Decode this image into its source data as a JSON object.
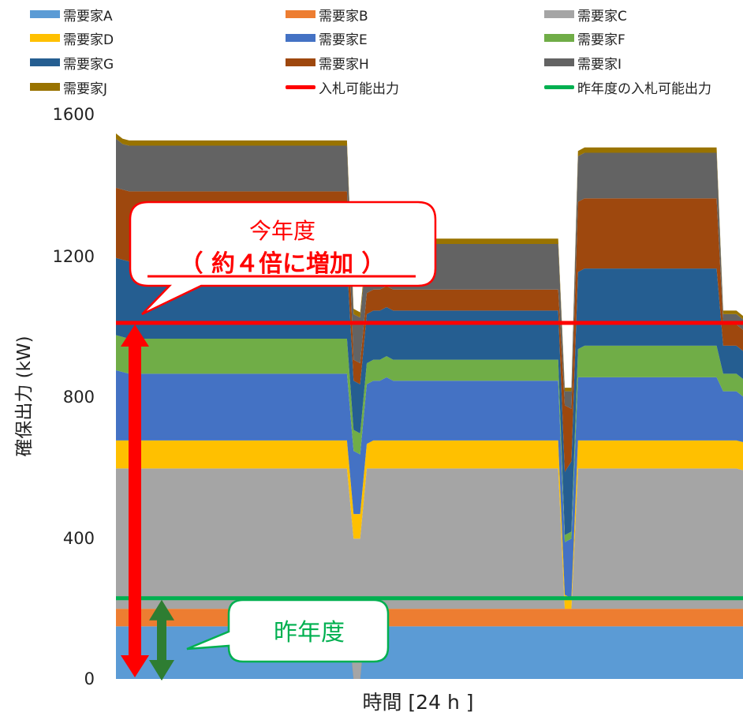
{
  "chart_data": {
    "type": "area",
    "stacked": true,
    "xlabel": "時間 [24 h ]",
    "ylabel": "確保出力 (kW)",
    "ylim": [
      0,
      1600
    ],
    "yticks": [
      0,
      400,
      800,
      1200,
      1600
    ],
    "x": [
      0,
      1,
      2,
      3,
      4,
      5,
      6,
      7,
      8,
      9,
      10,
      11,
      12,
      13,
      14,
      15,
      16,
      17,
      18,
      19,
      20,
      21,
      22,
      23,
      24,
      25,
      26,
      27,
      28,
      29,
      30,
      31,
      32,
      33,
      34,
      35,
      36,
      37,
      38,
      39,
      40,
      41,
      42,
      43,
      44,
      45,
      46,
      47,
      48,
      49,
      50,
      51,
      52,
      53,
      54,
      55,
      56,
      57,
      58,
      59,
      60,
      61,
      62,
      63,
      64,
      65,
      66,
      67,
      68,
      69,
      70,
      71,
      72,
      73,
      74,
      75,
      76,
      77,
      78,
      79,
      80,
      81,
      82,
      83,
      84,
      85,
      86,
      87,
      88,
      89,
      90,
      91,
      92,
      93,
      94,
      95
    ],
    "series": [
      {
        "name": "需要家A",
        "color": "#5b9bd5",
        "values": [
          150,
          150,
          150,
          150,
          150,
          150,
          150,
          150,
          150,
          150,
          150,
          150,
          150,
          150,
          150,
          150,
          150,
          150,
          150,
          150,
          150,
          150,
          150,
          150,
          150,
          150,
          150,
          150,
          150,
          150,
          150,
          150,
          150,
          150,
          150,
          150,
          150,
          150,
          150,
          150,
          150,
          150,
          150,
          150,
          150,
          150,
          150,
          150,
          150,
          150,
          150,
          150,
          150,
          150,
          150,
          150,
          150,
          150,
          150,
          150,
          150,
          150,
          150,
          150,
          150,
          150,
          150,
          150,
          150,
          150,
          150,
          150,
          150,
          150,
          150,
          150,
          150,
          150,
          150,
          150,
          150,
          150,
          150,
          150,
          150,
          150,
          150,
          150,
          150,
          150,
          150,
          150,
          150,
          150,
          150,
          150
        ]
      },
      {
        "name": "需要家B",
        "color": "#ed7d31",
        "values": [
          50,
          50,
          50,
          50,
          50,
          50,
          50,
          50,
          50,
          50,
          50,
          50,
          50,
          50,
          50,
          50,
          50,
          50,
          50,
          50,
          50,
          50,
          50,
          50,
          50,
          50,
          50,
          50,
          50,
          50,
          50,
          50,
          50,
          50,
          50,
          50,
          -150,
          -150,
          50,
          50,
          50,
          50,
          50,
          50,
          50,
          50,
          50,
          50,
          50,
          50,
          50,
          50,
          50,
          50,
          50,
          50,
          50,
          50,
          50,
          50,
          50,
          50,
          50,
          50,
          50,
          50,
          50,
          50,
          50,
          50,
          50,
          50,
          50,
          50,
          50,
          50,
          50,
          50,
          50,
          50,
          50,
          50,
          50,
          50,
          50,
          50,
          50,
          50,
          50,
          50,
          50,
          50,
          50,
          50,
          50,
          50
        ]
      },
      {
        "name": "需要家C",
        "color": "#a5a5a5",
        "values": [
          400,
          400,
          400,
          400,
          400,
          400,
          400,
          400,
          400,
          400,
          400,
          400,
          400,
          400,
          400,
          400,
          400,
          400,
          400,
          400,
          400,
          400,
          400,
          400,
          400,
          400,
          400,
          400,
          400,
          400,
          400,
          400,
          400,
          400,
          400,
          400,
          400,
          400,
          400,
          400,
          400,
          400,
          400,
          400,
          400,
          400,
          400,
          400,
          400,
          400,
          400,
          400,
          400,
          400,
          400,
          400,
          400,
          400,
          400,
          400,
          400,
          400,
          400,
          400,
          400,
          400,
          400,
          400,
          0,
          0,
          400,
          400,
          400,
          400,
          400,
          400,
          400,
          400,
          400,
          400,
          400,
          400,
          400,
          400,
          400,
          400,
          400,
          400,
          400,
          400,
          400,
          400,
          400,
          400,
          400,
          395
        ]
      },
      {
        "name": "需要家D",
        "color": "#ffc000",
        "values": [
          80,
          80,
          80,
          80,
          80,
          80,
          80,
          80,
          80,
          80,
          80,
          80,
          80,
          80,
          80,
          80,
          80,
          80,
          80,
          80,
          80,
          80,
          80,
          80,
          80,
          80,
          80,
          80,
          80,
          80,
          80,
          80,
          80,
          80,
          80,
          80,
          70,
          70,
          70,
          80,
          80,
          80,
          80,
          80,
          80,
          80,
          80,
          80,
          80,
          80,
          80,
          80,
          80,
          80,
          80,
          80,
          80,
          80,
          80,
          80,
          80,
          80,
          80,
          80,
          80,
          80,
          80,
          80,
          40,
          30,
          80,
          80,
          80,
          80,
          80,
          80,
          80,
          80,
          80,
          80,
          80,
          80,
          80,
          80,
          80,
          80,
          80,
          80,
          80,
          80,
          80,
          80,
          80,
          80,
          80,
          80
        ]
      },
      {
        "name": "需要家E",
        "color": "#4472c4",
        "values": [
          200,
          195,
          190,
          190,
          190,
          190,
          190,
          190,
          190,
          190,
          190,
          190,
          190,
          190,
          190,
          190,
          190,
          190,
          190,
          190,
          190,
          190,
          190,
          190,
          190,
          190,
          190,
          190,
          190,
          190,
          190,
          190,
          190,
          190,
          190,
          190,
          180,
          170,
          170,
          170,
          170,
          180,
          170,
          170,
          170,
          170,
          170,
          170,
          170,
          170,
          170,
          170,
          170,
          170,
          170,
          170,
          170,
          170,
          170,
          170,
          170,
          170,
          170,
          170,
          170,
          170,
          170,
          170,
          150,
          170,
          180,
          180,
          180,
          180,
          180,
          180,
          180,
          180,
          180,
          180,
          180,
          180,
          180,
          180,
          180,
          180,
          180,
          180,
          180,
          180,
          180,
          180,
          140,
          140,
          140,
          130
        ]
      },
      {
        "name": "需要家F",
        "color": "#70ad47",
        "values": [
          100,
          100,
          100,
          100,
          100,
          100,
          100,
          100,
          100,
          100,
          100,
          100,
          100,
          100,
          100,
          100,
          100,
          100,
          100,
          100,
          100,
          100,
          100,
          100,
          100,
          100,
          100,
          100,
          100,
          100,
          100,
          100,
          100,
          100,
          100,
          100,
          60,
          60,
          60,
          60,
          60,
          60,
          60,
          60,
          60,
          60,
          60,
          60,
          60,
          60,
          60,
          60,
          60,
          60,
          60,
          60,
          60,
          60,
          60,
          60,
          60,
          60,
          60,
          60,
          60,
          60,
          60,
          60,
          20,
          20,
          80,
          90,
          90,
          90,
          90,
          90,
          90,
          90,
          90,
          90,
          90,
          90,
          90,
          90,
          90,
          90,
          90,
          90,
          90,
          90,
          90,
          90,
          50,
          50,
          50,
          50
        ]
      },
      {
        "name": "需要家G",
        "color": "#255e91",
        "values": [
          220,
          220,
          220,
          220,
          220,
          220,
          220,
          220,
          220,
          220,
          220,
          220,
          220,
          220,
          220,
          220,
          220,
          220,
          220,
          220,
          220,
          220,
          220,
          220,
          220,
          220,
          220,
          220,
          220,
          220,
          220,
          220,
          220,
          220,
          220,
          220,
          140,
          140,
          140,
          140,
          140,
          140,
          140,
          140,
          140,
          140,
          140,
          140,
          140,
          140,
          140,
          140,
          140,
          140,
          140,
          140,
          140,
          140,
          140,
          140,
          140,
          140,
          140,
          140,
          140,
          140,
          140,
          140,
          180,
          200,
          220,
          220,
          220,
          220,
          220,
          220,
          220,
          220,
          220,
          220,
          220,
          220,
          220,
          220,
          220,
          220,
          220,
          220,
          220,
          220,
          220,
          220,
          80,
          80,
          80,
          80
        ]
      },
      {
        "name": "需要家H",
        "color": "#9e480e",
        "values": [
          200,
          200,
          200,
          200,
          200,
          200,
          200,
          200,
          200,
          200,
          200,
          200,
          200,
          200,
          200,
          200,
          200,
          200,
          200,
          200,
          200,
          200,
          200,
          200,
          200,
          200,
          200,
          200,
          200,
          200,
          200,
          200,
          200,
          200,
          200,
          200,
          60,
          60,
          60,
          60,
          60,
          60,
          60,
          60,
          60,
          60,
          60,
          60,
          60,
          60,
          60,
          60,
          60,
          60,
          60,
          60,
          60,
          60,
          60,
          60,
          60,
          60,
          60,
          60,
          60,
          60,
          60,
          60,
          190,
          150,
          200,
          200,
          200,
          200,
          200,
          200,
          200,
          200,
          200,
          200,
          200,
          200,
          200,
          200,
          200,
          200,
          200,
          200,
          200,
          200,
          200,
          200,
          60,
          60,
          60,
          60
        ]
      },
      {
        "name": "需要家I",
        "color": "#636363",
        "values": [
          140,
          130,
          130,
          130,
          130,
          130,
          130,
          130,
          130,
          130,
          130,
          130,
          130,
          130,
          130,
          130,
          130,
          130,
          130,
          130,
          130,
          130,
          130,
          130,
          130,
          130,
          130,
          130,
          130,
          130,
          130,
          130,
          130,
          130,
          130,
          130,
          130,
          130,
          130,
          130,
          130,
          130,
          130,
          130,
          130,
          130,
          130,
          130,
          130,
          130,
          130,
          130,
          130,
          130,
          130,
          130,
          130,
          130,
          130,
          130,
          130,
          130,
          130,
          130,
          130,
          130,
          130,
          130,
          40,
          50,
          130,
          130,
          130,
          130,
          130,
          130,
          130,
          130,
          130,
          130,
          130,
          130,
          130,
          130,
          130,
          130,
          130,
          130,
          130,
          130,
          130,
          130,
          30,
          30,
          30,
          30
        ]
      },
      {
        "name": "需要家J",
        "color": "#997300",
        "values": [
          15,
          15,
          15,
          15,
          15,
          15,
          15,
          15,
          15,
          15,
          15,
          15,
          15,
          15,
          15,
          15,
          15,
          15,
          15,
          15,
          15,
          15,
          15,
          15,
          15,
          15,
          15,
          15,
          15,
          15,
          15,
          15,
          15,
          15,
          15,
          15,
          15,
          15,
          15,
          15,
          15,
          15,
          15,
          15,
          15,
          15,
          15,
          15,
          15,
          15,
          15,
          15,
          15,
          15,
          15,
          15,
          15,
          15,
          15,
          15,
          15,
          15,
          15,
          15,
          15,
          15,
          15,
          15,
          10,
          10,
          15,
          15,
          15,
          15,
          15,
          15,
          15,
          15,
          15,
          15,
          15,
          15,
          15,
          15,
          15,
          15,
          15,
          15,
          15,
          15,
          15,
          15,
          10,
          10,
          10,
          10
        ]
      }
    ],
    "reference_lines": [
      {
        "name": "入札可能出力",
        "color": "#ff0000",
        "value": 1015
      },
      {
        "name": "昨年度の入札可能出力",
        "color": "#00b050",
        "value": 230
      }
    ],
    "legend_position": "top",
    "grid": false,
    "annotations": {
      "this_year_title": "今年度",
      "this_year_sub": "（ 約４倍に増加 ）",
      "last_year": "昨年度"
    }
  },
  "axis": {
    "yticks_text": [
      "1600",
      "1200",
      "800",
      "400",
      "0"
    ]
  }
}
